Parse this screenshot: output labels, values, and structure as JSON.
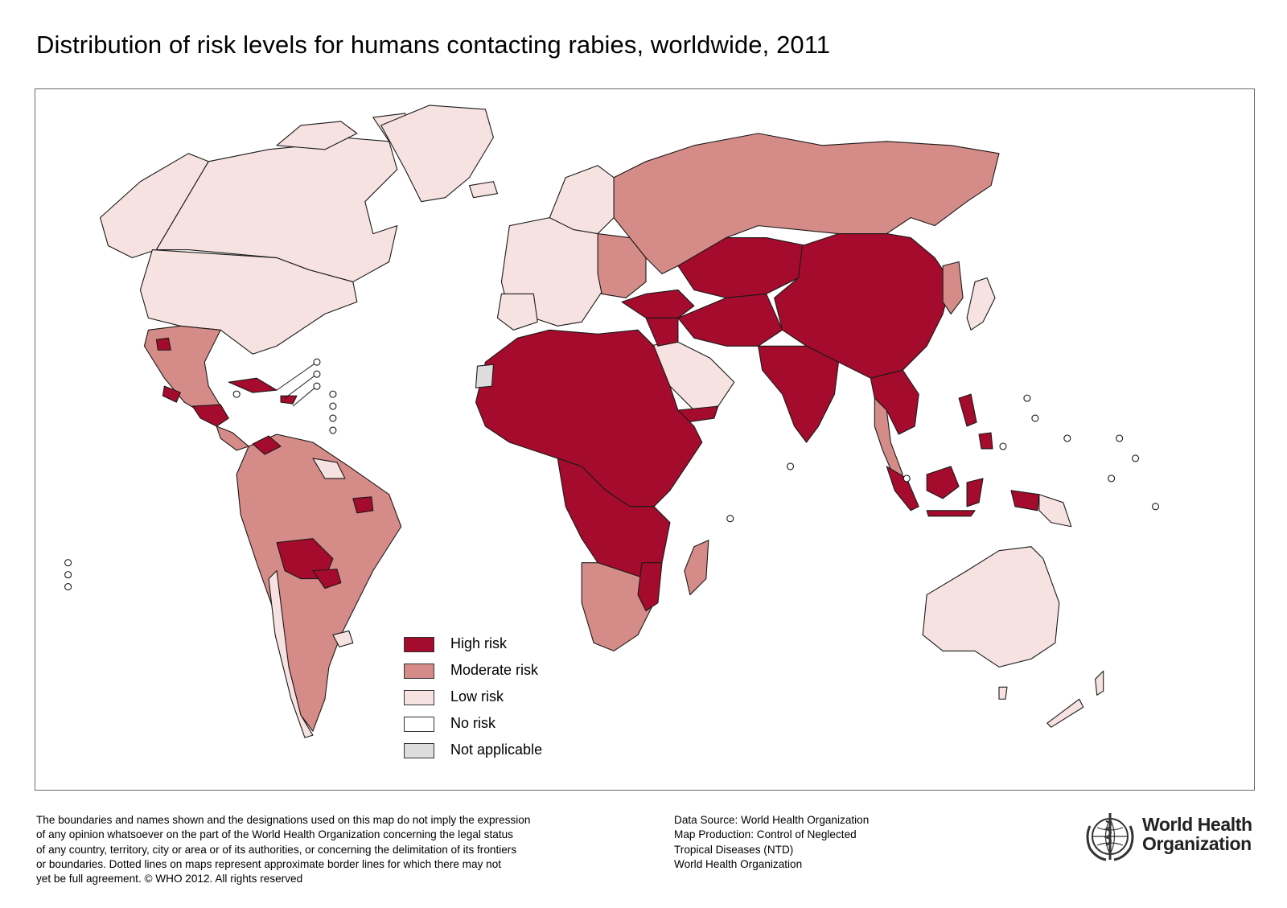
{
  "title": "Distribution of risk levels for humans contacting rabies, worldwide, 2011",
  "legend": [
    {
      "label": "High risk",
      "color": "#a50b2c"
    },
    {
      "label": "Moderate risk",
      "color": "#d58b87"
    },
    {
      "label": "Low risk",
      "color": "#f6e2e0"
    },
    {
      "label": "No risk",
      "color": "#ffffff"
    },
    {
      "label": "Not applicable",
      "color": "#dddddd"
    }
  ],
  "disclaimer": [
    "The boundaries and names shown and the designations used on this map do not imply the expression",
    "of any opinion whatsoever on the part of the World Health Organization concerning the legal status",
    "of any country, territory, city or area or of its authorities, or concerning the delimitation of its frontiers",
    "or boundaries. Dotted lines on maps represent approximate border lines for which there may not",
    "yet be full agreement. © WHO 2012. All rights reserved"
  ],
  "source": [
    "Data Source: World Health Organization",
    "Map Production: Control of Neglected",
    "Tropical Diseases (NTD)",
    "World Health Organization"
  ],
  "logo": {
    "line1": "World Health",
    "line2": "Organization",
    "icon": "who-emblem-icon"
  }
}
